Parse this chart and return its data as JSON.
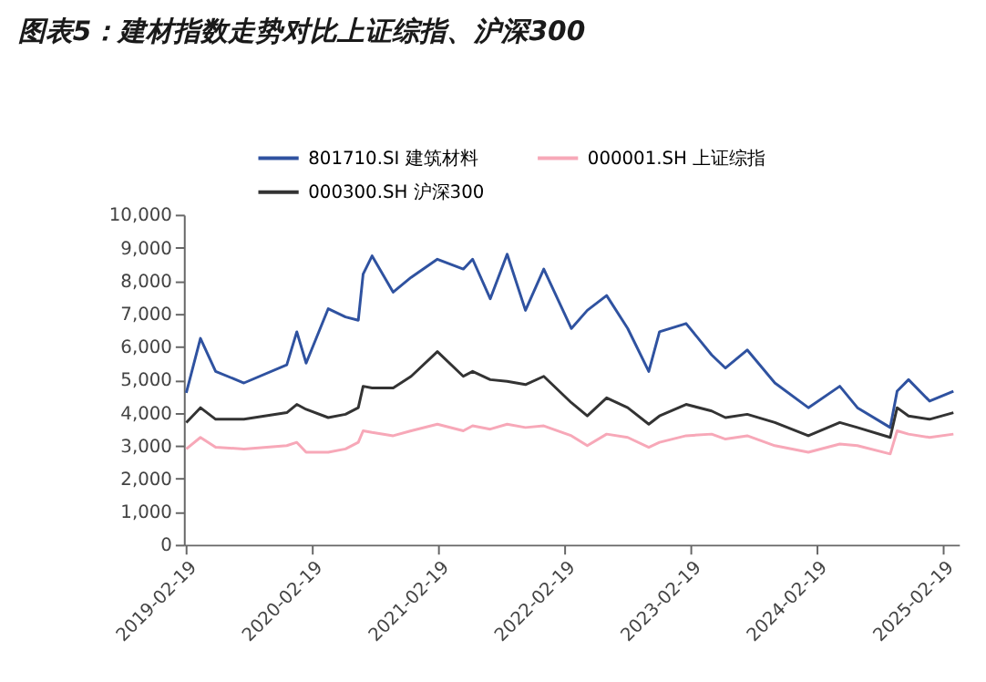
{
  "chart_data": {
    "type": "line",
    "title": "图表5：建材指数走势对比上证综指、沪深300",
    "xlim": [
      "2019-02-12",
      "2025-04-05"
    ],
    "xticks": [
      "2019-02-19",
      "2020-02-19",
      "2021-02-19",
      "2022-02-19",
      "2023-02-19",
      "2024-02-19",
      "2025-02-19"
    ],
    "ylim": [
      0,
      10000
    ],
    "yticks": [
      {
        "value": 0,
        "label": "0"
      },
      {
        "value": 1000,
        "label": "1,000"
      },
      {
        "value": 2000,
        "label": "2,000"
      },
      {
        "value": 3000,
        "label": "3,000"
      },
      {
        "value": 4000,
        "label": "4,000"
      },
      {
        "value": 5000,
        "label": "5,000"
      },
      {
        "value": 6000,
        "label": "6,000"
      },
      {
        "value": 7000,
        "label": "7,000"
      },
      {
        "value": 8000,
        "label": "8,000"
      },
      {
        "value": 9000,
        "label": "9,000"
      },
      {
        "value": 10000,
        "label": "10,000"
      }
    ],
    "grid": false,
    "legend": "top",
    "marker": "none",
    "line_style": "solid",
    "x": [
      "2019-02-19",
      "2019-04-01",
      "2019-05-15",
      "2019-08-05",
      "2019-12-07",
      "2020-01-05",
      "2020-02-01",
      "2020-04-05",
      "2020-05-25",
      "2020-07-01",
      "2020-07-15",
      "2020-08-10",
      "2020-10-10",
      "2020-12-01",
      "2021-02-15",
      "2021-05-01",
      "2021-05-28",
      "2021-07-18",
      "2021-09-05",
      "2021-10-28",
      "2021-12-20",
      "2022-03-10",
      "2022-04-25",
      "2022-06-20",
      "2022-08-20",
      "2022-10-20",
      "2022-11-20",
      "2023-02-05",
      "2023-04-20",
      "2023-05-30",
      "2023-08-01",
      "2023-10-20",
      "2024-01-25",
      "2024-04-25",
      "2024-06-15",
      "2024-09-18",
      "2024-10-08",
      "2024-11-10",
      "2025-01-10",
      "2025-03-20"
    ],
    "series": [
      {
        "name": "801710.SI 建筑材料",
        "color": "#2f52a0",
        "values": [
          4600,
          6250,
          5250,
          4900,
          5450,
          6450,
          5500,
          7150,
          6900,
          6800,
          8200,
          8750,
          7650,
          8100,
          8650,
          8350,
          8650,
          7450,
          8800,
          7100,
          8350,
          6550,
          7100,
          7550,
          6550,
          5250,
          6450,
          6700,
          5750,
          5350,
          5900,
          4900,
          4150,
          4800,
          4150,
          3550,
          4650,
          5000,
          4350,
          4650
        ]
      },
      {
        "name": "000001.SH 上证综指",
        "color": "#f7a8b8",
        "values": [
          2900,
          3250,
          2950,
          2900,
          3000,
          3100,
          2800,
          2800,
          2900,
          3100,
          3450,
          3400,
          3300,
          3450,
          3650,
          3450,
          3600,
          3500,
          3650,
          3550,
          3600,
          3300,
          3000,
          3350,
          3250,
          2950,
          3100,
          3300,
          3350,
          3200,
          3300,
          3000,
          2800,
          3050,
          3000,
          2750,
          3450,
          3350,
          3250,
          3350
        ]
      },
      {
        "name": "000300.SH 沪深300",
        "color": "#333333",
        "values": [
          3700,
          4150,
          3800,
          3800,
          4000,
          4250,
          4100,
          3850,
          3950,
          4150,
          4800,
          4750,
          4750,
          5100,
          5850,
          5100,
          5250,
          5000,
          4950,
          4850,
          5100,
          4300,
          3900,
          4450,
          4150,
          3650,
          3900,
          4250,
          4050,
          3850,
          3950,
          3700,
          3300,
          3700,
          3550,
          3250,
          4150,
          3900,
          3800,
          4000
        ]
      }
    ]
  }
}
